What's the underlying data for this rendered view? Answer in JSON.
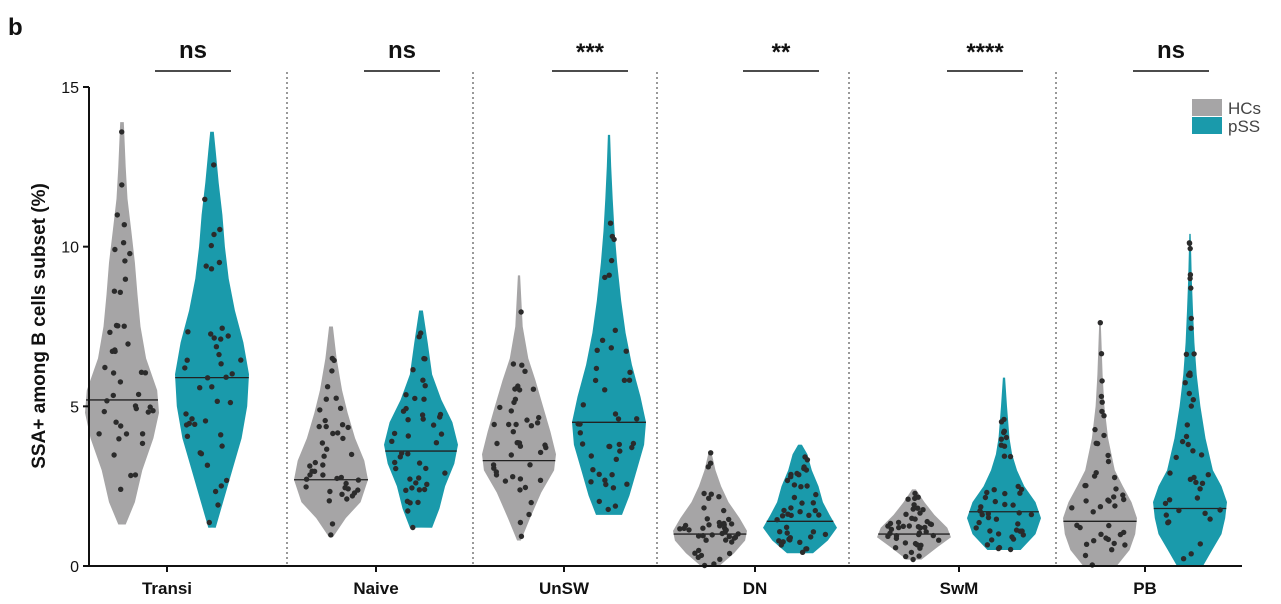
{
  "panel_label": "b",
  "chart_data": {
    "type": "violin",
    "ylabel": "SSA+ among B cells subset (%)",
    "ylim": [
      0,
      15
    ],
    "yticks": [
      0,
      5,
      10,
      15
    ],
    "legend_position": "top-right",
    "series": [
      {
        "name": "HCs",
        "color": "#a6a5a6"
      },
      {
        "name": "pSS",
        "color": "#1a9aab"
      }
    ],
    "categories": [
      "Transi",
      "Naive",
      "UnSW",
      "DN",
      "SwM",
      "PB"
    ],
    "significance": [
      "ns",
      "ns",
      "***",
      "**",
      "****",
      "ns"
    ],
    "groups": [
      {
        "category": "Transi",
        "hc": {
          "min": 1.3,
          "max": 13.9,
          "median": 5.2,
          "profile": [
            [
              1.3,
              0.1
            ],
            [
              2,
              0.35
            ],
            [
              3,
              0.55
            ],
            [
              4,
              0.85
            ],
            [
              4.8,
              1
            ],
            [
              5.5,
              0.95
            ],
            [
              6.5,
              0.65
            ],
            [
              7.5,
              0.5
            ],
            [
              8.5,
              0.42
            ],
            [
              9.5,
              0.35
            ],
            [
              10.5,
              0.25
            ],
            [
              11.5,
              0.15
            ],
            [
              12.5,
              0.1
            ],
            [
              13.9,
              0.05
            ]
          ]
        },
        "pss": {
          "min": 1.2,
          "max": 13.6,
          "median": 5.9,
          "profile": [
            [
              1.2,
              0.1
            ],
            [
              2,
              0.3
            ],
            [
              3,
              0.55
            ],
            [
              4,
              0.8
            ],
            [
              5,
              0.95
            ],
            [
              6,
              1
            ],
            [
              7,
              0.85
            ],
            [
              8,
              0.62
            ],
            [
              9,
              0.45
            ],
            [
              10,
              0.35
            ],
            [
              11,
              0.28
            ],
            [
              12,
              0.18
            ],
            [
              13,
              0.1
            ],
            [
              13.6,
              0.05
            ]
          ]
        }
      },
      {
        "category": "Naive",
        "hc": {
          "min": 0.9,
          "max": 7.5,
          "median": 2.7,
          "profile": [
            [
              0.9,
              0.05
            ],
            [
              1.5,
              0.4
            ],
            [
              2,
              0.8
            ],
            [
              2.7,
              1
            ],
            [
              3.3,
              0.9
            ],
            [
              4,
              0.65
            ],
            [
              4.8,
              0.45
            ],
            [
              5.5,
              0.3
            ],
            [
              6.5,
              0.15
            ],
            [
              7.5,
              0.05
            ]
          ]
        },
        "pss": {
          "min": 1.2,
          "max": 8.0,
          "median": 3.6,
          "profile": [
            [
              1.2,
              0.3
            ],
            [
              1.8,
              0.5
            ],
            [
              2.5,
              0.65
            ],
            [
              3.2,
              0.9
            ],
            [
              3.8,
              1
            ],
            [
              4.5,
              0.85
            ],
            [
              5.2,
              0.55
            ],
            [
              6,
              0.3
            ],
            [
              7,
              0.18
            ],
            [
              8,
              0.05
            ]
          ]
        }
      },
      {
        "category": "UnSW",
        "hc": {
          "min": 0.8,
          "max": 9.1,
          "median": 3.3,
          "profile": [
            [
              0.8,
              0.05
            ],
            [
              1.5,
              0.3
            ],
            [
              2.3,
              0.6
            ],
            [
              3,
              0.95
            ],
            [
              3.5,
              1
            ],
            [
              4.2,
              0.85
            ],
            [
              5,
              0.65
            ],
            [
              5.8,
              0.45
            ],
            [
              6.5,
              0.25
            ],
            [
              7.5,
              0.1
            ],
            [
              9.1,
              0.03
            ]
          ]
        },
        "pss": {
          "min": 1.6,
          "max": 13.5,
          "median": 4.5,
          "profile": [
            [
              1.6,
              0.35
            ],
            [
              2.2,
              0.55
            ],
            [
              3,
              0.75
            ],
            [
              3.8,
              0.95
            ],
            [
              4.5,
              1
            ],
            [
              5.3,
              0.85
            ],
            [
              6.3,
              0.62
            ],
            [
              7.3,
              0.45
            ],
            [
              8.3,
              0.33
            ],
            [
              9.5,
              0.22
            ],
            [
              10.5,
              0.15
            ],
            [
              11.5,
              0.1
            ],
            [
              12.5,
              0.06
            ],
            [
              13.5,
              0.03
            ]
          ]
        }
      },
      {
        "category": "DN",
        "hc": {
          "min": 0.0,
          "max": 3.6,
          "median": 1.0,
          "profile": [
            [
              0,
              0.25
            ],
            [
              0.4,
              0.65
            ],
            [
              0.8,
              0.95
            ],
            [
              1.1,
              1
            ],
            [
              1.5,
              0.8
            ],
            [
              2,
              0.5
            ],
            [
              2.5,
              0.3
            ],
            [
              3,
              0.15
            ],
            [
              3.6,
              0.03
            ]
          ]
        },
        "pss": {
          "min": 0.4,
          "max": 3.8,
          "median": 1.4,
          "profile": [
            [
              0.4,
              0.35
            ],
            [
              0.8,
              0.75
            ],
            [
              1.2,
              1
            ],
            [
              1.6,
              0.8
            ],
            [
              2,
              0.62
            ],
            [
              2.5,
              0.5
            ],
            [
              3,
              0.32
            ],
            [
              3.5,
              0.2
            ],
            [
              3.8,
              0.05
            ]
          ]
        }
      },
      {
        "category": "SwM",
        "hc": {
          "min": 0.2,
          "max": 2.4,
          "median": 1.0,
          "profile": [
            [
              0.2,
              0.2
            ],
            [
              0.6,
              0.65
            ],
            [
              0.9,
              1
            ],
            [
              1.2,
              0.9
            ],
            [
              1.6,
              0.55
            ],
            [
              2,
              0.28
            ],
            [
              2.4,
              0.05
            ]
          ]
        },
        "pss": {
          "min": 0.5,
          "max": 5.9,
          "median": 1.7,
          "profile": [
            [
              0.5,
              0.45
            ],
            [
              1,
              0.85
            ],
            [
              1.5,
              1
            ],
            [
              2,
              0.85
            ],
            [
              2.5,
              0.55
            ],
            [
              3,
              0.35
            ],
            [
              3.5,
              0.22
            ],
            [
              4,
              0.15
            ],
            [
              5,
              0.08
            ],
            [
              5.9,
              0.03
            ]
          ]
        }
      },
      {
        "category": "PB",
        "hc": {
          "min": 0.0,
          "max": 7.7,
          "median": 1.4,
          "profile": [
            [
              0,
              0.45
            ],
            [
              0.5,
              0.8
            ],
            [
              1,
              0.95
            ],
            [
              1.5,
              1
            ],
            [
              2,
              0.85
            ],
            [
              2.5,
              0.62
            ],
            [
              3,
              0.4
            ],
            [
              4,
              0.22
            ],
            [
              5,
              0.12
            ],
            [
              6,
              0.07
            ],
            [
              7.7,
              0.02
            ]
          ]
        },
        "pss": {
          "min": 0.0,
          "max": 10.4,
          "median": 1.8,
          "profile": [
            [
              0,
              0.35
            ],
            [
              0.5,
              0.6
            ],
            [
              1,
              0.85
            ],
            [
              1.5,
              0.95
            ],
            [
              2,
              1
            ],
            [
              2.5,
              0.85
            ],
            [
              3,
              0.62
            ],
            [
              4,
              0.42
            ],
            [
              5,
              0.28
            ],
            [
              6,
              0.18
            ],
            [
              7,
              0.12
            ],
            [
              8,
              0.08
            ],
            [
              9,
              0.05
            ],
            [
              10.4,
              0.02
            ]
          ]
        }
      }
    ]
  }
}
